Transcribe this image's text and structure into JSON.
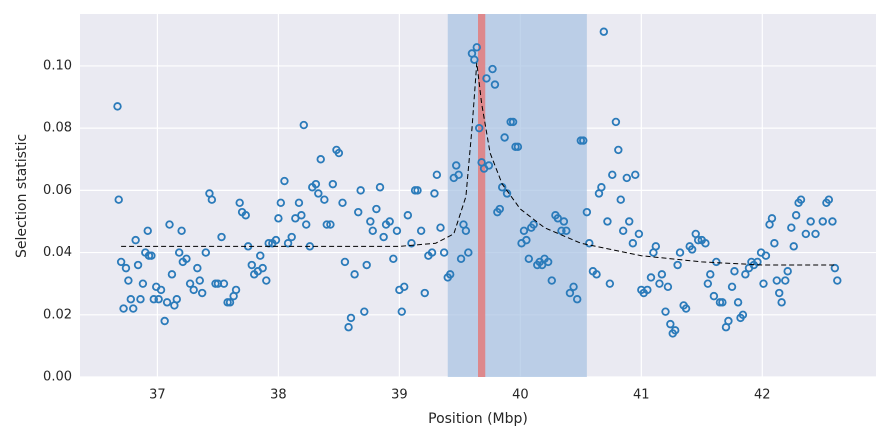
{
  "chart_data": {
    "type": "scatter",
    "xlabel": "Position (Mbp)",
    "ylabel": "Selection statistic",
    "xlim": [
      36.36,
      42.94
    ],
    "ylim": [
      0,
      0.1167
    ],
    "xticks": [
      37,
      38,
      39,
      40,
      41,
      42
    ],
    "yticks": [
      {
        "value": 0,
        "label": "0.00"
      },
      {
        "value": 0.02,
        "label": "0.02"
      },
      {
        "value": 0.04,
        "label": "0.04"
      },
      {
        "value": 0.06,
        "label": "0.06"
      },
      {
        "value": 0.08,
        "label": "0.08"
      },
      {
        "value": 0.1,
        "label": "0.10"
      }
    ],
    "grid": true,
    "color": "#2b7bba",
    "spans": [
      {
        "xlim": [
          39.4,
          40.55
        ],
        "color": "#a7c2e2"
      },
      {
        "xlim": [
          39.65,
          39.71
        ],
        "color": "#e37b7b"
      }
    ],
    "curve": {
      "color": "#000000",
      "x": [
        36.7,
        38.0,
        39.0,
        39.3,
        39.45,
        39.55,
        39.6,
        39.64,
        39.68,
        39.75,
        39.85,
        40.0,
        40.2,
        40.5,
        41.0,
        41.5,
        42.0,
        42.6
      ],
      "values": [
        0.042,
        0.042,
        0.042,
        0.043,
        0.046,
        0.058,
        0.08,
        0.101,
        0.088,
        0.072,
        0.062,
        0.054,
        0.048,
        0.043,
        0.039,
        0.037,
        0.036,
        0.036
      ]
    },
    "x": [
      36.67,
      36.68,
      36.7,
      36.72,
      36.74,
      36.76,
      36.78,
      36.8,
      36.82,
      36.84,
      36.86,
      36.88,
      36.9,
      36.92,
      36.93,
      36.95,
      36.97,
      36.99,
      37.01,
      37.03,
      37.06,
      37.08,
      37.1,
      37.12,
      37.14,
      37.16,
      37.18,
      37.2,
      37.21,
      37.24,
      37.27,
      37.3,
      37.33,
      37.35,
      37.37,
      37.4,
      37.43,
      37.45,
      37.48,
      37.5,
      37.53,
      37.55,
      37.58,
      37.6,
      37.63,
      37.65,
      37.68,
      37.7,
      37.73,
      37.75,
      37.78,
      37.8,
      37.83,
      37.85,
      37.87,
      37.9,
      37.92,
      37.95,
      37.98,
      38.0,
      38.02,
      38.05,
      38.08,
      38.11,
      38.14,
      38.17,
      38.19,
      38.21,
      38.23,
      38.26,
      38.28,
      38.31,
      38.33,
      38.35,
      38.38,
      38.4,
      38.43,
      38.45,
      38.48,
      38.5,
      38.53,
      38.55,
      38.58,
      38.6,
      38.63,
      38.66,
      38.68,
      38.71,
      38.73,
      38.76,
      38.78,
      38.81,
      38.84,
      38.87,
      38.89,
      38.92,
      38.95,
      38.98,
      39.0,
      39.02,
      39.04,
      39.07,
      39.1,
      39.13,
      39.15,
      39.18,
      39.21,
      39.24,
      39.27,
      39.29,
      39.31,
      39.34,
      39.37,
      39.4,
      39.42,
      39.45,
      39.47,
      39.49,
      39.51,
      39.53,
      39.55,
      39.57,
      39.6,
      39.62,
      39.64,
      39.66,
      39.68,
      39.7,
      39.72,
      39.74,
      39.77,
      39.79,
      39.81,
      39.83,
      39.85,
      39.87,
      39.89,
      39.92,
      39.94,
      39.96,
      39.98,
      40.01,
      40.03,
      40.05,
      40.07,
      40.09,
      40.11,
      40.14,
      40.16,
      40.18,
      40.2,
      40.23,
      40.26,
      40.29,
      40.31,
      40.34,
      40.36,
      40.38,
      40.41,
      40.44,
      40.47,
      40.5,
      40.52,
      40.55,
      40.57,
      40.6,
      40.63,
      40.65,
      40.67,
      40.69,
      40.72,
      40.74,
      40.76,
      40.79,
      40.81,
      40.83,
      40.85,
      40.88,
      40.9,
      40.93,
      40.95,
      40.98,
      41.0,
      41.02,
      41.05,
      41.08,
      41.1,
      41.12,
      41.15,
      41.17,
      41.2,
      41.22,
      41.24,
      41.26,
      41.28,
      41.3,
      41.32,
      41.35,
      41.37,
      41.4,
      41.42,
      41.45,
      41.47,
      41.5,
      41.53,
      41.55,
      41.57,
      41.6,
      41.62,
      41.65,
      41.67,
      41.7,
      41.72,
      41.75,
      41.77,
      41.8,
      41.82,
      41.84,
      41.86,
      41.89,
      41.91,
      41.93,
      41.96,
      41.99,
      42.01,
      42.03,
      42.06,
      42.08,
      42.1,
      42.12,
      42.14,
      42.16,
      42.19,
      42.21,
      42.24,
      42.26,
      42.28,
      42.3,
      42.32,
      42.36,
      42.4,
      42.44,
      42.5,
      42.53,
      42.55,
      42.58,
      42.6,
      42.62
    ],
    "values": [
      0.087,
      0.057,
      0.037,
      0.022,
      0.035,
      0.031,
      0.025,
      0.022,
      0.044,
      0.036,
      0.025,
      0.03,
      0.04,
      0.047,
      0.039,
      0.039,
      0.025,
      0.029,
      0.025,
      0.028,
      0.018,
      0.024,
      0.049,
      0.033,
      0.023,
      0.025,
      0.04,
      0.047,
      0.037,
      0.038,
      0.03,
      0.028,
      0.035,
      0.031,
      0.027,
      0.04,
      0.059,
      0.057,
      0.03,
      0.03,
      0.045,
      0.03,
      0.024,
      0.024,
      0.026,
      0.028,
      0.056,
      0.053,
      0.052,
      0.042,
      0.036,
      0.033,
      0.034,
      0.039,
      0.035,
      0.031,
      0.043,
      0.043,
      0.044,
      0.051,
      0.056,
      0.063,
      0.043,
      0.045,
      0.051,
      0.056,
      0.052,
      0.081,
      0.049,
      0.042,
      0.061,
      0.062,
      0.059,
      0.07,
      0.057,
      0.049,
      0.049,
      0.062,
      0.073,
      0.072,
      0.056,
      0.037,
      0.016,
      0.019,
      0.033,
      0.053,
      0.06,
      0.021,
      0.036,
      0.05,
      0.047,
      0.054,
      0.061,
      0.045,
      0.049,
      0.05,
      0.038,
      0.047,
      0.028,
      0.021,
      0.029,
      0.052,
      0.043,
      0.06,
      0.06,
      0.047,
      0.027,
      0.039,
      0.04,
      0.059,
      0.065,
      0.048,
      0.04,
      0.032,
      0.033,
      0.064,
      0.068,
      0.065,
      0.038,
      0.049,
      0.047,
      0.04,
      0.104,
      0.102,
      0.106,
      0.08,
      0.069,
      0.067,
      0.096,
      0.068,
      0.099,
      0.094,
      0.053,
      0.054,
      0.061,
      0.077,
      0.059,
      0.082,
      0.082,
      0.074,
      0.074,
      0.043,
      0.047,
      0.044,
      0.038,
      0.048,
      0.049,
      0.036,
      0.037,
      0.036,
      0.038,
      0.037,
      0.031,
      0.052,
      0.051,
      0.047,
      0.05,
      0.047,
      0.027,
      0.029,
      0.025,
      0.076,
      0.076,
      0.053,
      0.043,
      0.034,
      0.033,
      0.059,
      0.061,
      0.111,
      0.05,
      0.03,
      0.065,
      0.082,
      0.073,
      0.057,
      0.047,
      0.064,
      0.05,
      0.043,
      0.065,
      0.046,
      0.028,
      0.027,
      0.028,
      0.032,
      0.04,
      0.042,
      0.03,
      0.033,
      0.021,
      0.029,
      0.017,
      0.014,
      0.015,
      0.036,
      0.04,
      0.023,
      0.022,
      0.042,
      0.041,
      0.046,
      0.044,
      0.044,
      0.043,
      0.03,
      0.033,
      0.026,
      0.037,
      0.024,
      0.024,
      0.016,
      0.018,
      0.029,
      0.034,
      0.024,
      0.019,
      0.02,
      0.033,
      0.035,
      0.037,
      0.036,
      0.037,
      0.04,
      0.03,
      0.039,
      0.049,
      0.051,
      0.043,
      0.031,
      0.027,
      0.024,
      0.031,
      0.034,
      0.048,
      0.042,
      0.052,
      0.056,
      0.057,
      0.046,
      0.05,
      0.046,
      0.05,
      0.056,
      0.057,
      0.05,
      0.035,
      0.031
    ]
  }
}
